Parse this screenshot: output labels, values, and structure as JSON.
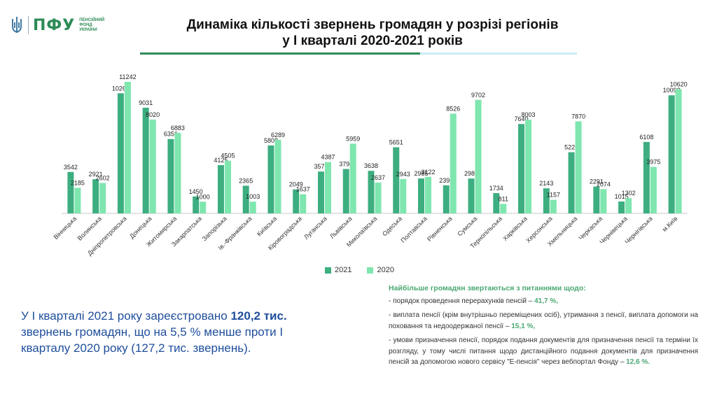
{
  "logo": {
    "abbr": "ПФУ",
    "name_lines": [
      "ПЕНСІЙНИЙ",
      "ФОНД",
      "УКРАЇНИ"
    ]
  },
  "title": {
    "line1": "Динаміка кількості звернень громадян у розрізі регіонів",
    "line2": "у І кварталі 2020-2021 років"
  },
  "colors": {
    "s2021": "#3dae80",
    "s2020": "#7ee6ae",
    "accent_line": "#2e8b57",
    "accent_line_light": "#c9ecf4",
    "summary_text": "#1f4e9c",
    "heading_green": "#4aa872"
  },
  "chart_data": {
    "type": "bar",
    "categories": [
      "Вінницька",
      "Волинська",
      "Дніпропетровська",
      "Донецька",
      "Житомирська",
      "Закарпатська",
      "Запорізька",
      "Ів.-Франківська",
      "Київська",
      "Кіровоградська",
      "Луганська",
      "Львівська",
      "Миколаївська",
      "Одеська",
      "Полтавська",
      "Рівненська",
      "Сумська",
      "Тернопільська",
      "Харківська",
      "Херсонська",
      "Хмельницька",
      "Черкаська",
      "Чернівецька",
      "Чернігівська",
      "м.Київ"
    ],
    "series": [
      {
        "name": "2021",
        "values": [
          3542,
          2921,
          10265,
          9031,
          6356,
          1450,
          4125,
          2365,
          5808,
          2049,
          3576,
          3794,
          3638,
          5651,
          2985,
          2398,
          2983,
          1734,
          7640,
          2143,
          5226,
          2291,
          1015,
          6108,
          10092
        ]
      },
      {
        "name": "2020",
        "values": [
          2185,
          2602,
          11242,
          8020,
          6883,
          1000,
          4505,
          1003,
          6289,
          1637,
          4387,
          5959,
          2637,
          2943,
          3122,
          8526,
          9702,
          811,
          8003,
          1157,
          7870,
          2074,
          1302,
          3975,
          10620
        ]
      }
    ],
    "ylim": [
      0,
      11242
    ],
    "grid": false,
    "legend": "bottom"
  },
  "legend": {
    "s2021": "2021",
    "s2020": "2020"
  },
  "summary": {
    "part1": "У І кварталі 2021 року зареєстровано ",
    "bold": "120,2 тис.",
    "part2": " звернень громадян, що на 5,5 % менше проти І кварталу 2020 року (127,2 тис. звернень)."
  },
  "issues": {
    "heading": "Найбільше громадян звертаються з питаннями щодо:",
    "items": [
      {
        "text": "- порядок проведення перерахунків пенсій – ",
        "pct": "41,7 %,"
      },
      {
        "text": "- виплата пенсії (крім внутрішньо переміщених осіб), утримання з пенсії, виплата допомоги на поховання та недоодержаної пенсії – ",
        "pct": "15,1 %,"
      },
      {
        "text": "- умови призначення пенсії, порядок подання документів для призначення пенсії та терміни їх розгляду, у тому числі питання щодо дистанційного подання документів для призначення пенсій за допомогою нового сервісу \"Е-пенсія\" через вебпортал Фонду – ",
        "pct": "12,6 %."
      }
    ]
  }
}
